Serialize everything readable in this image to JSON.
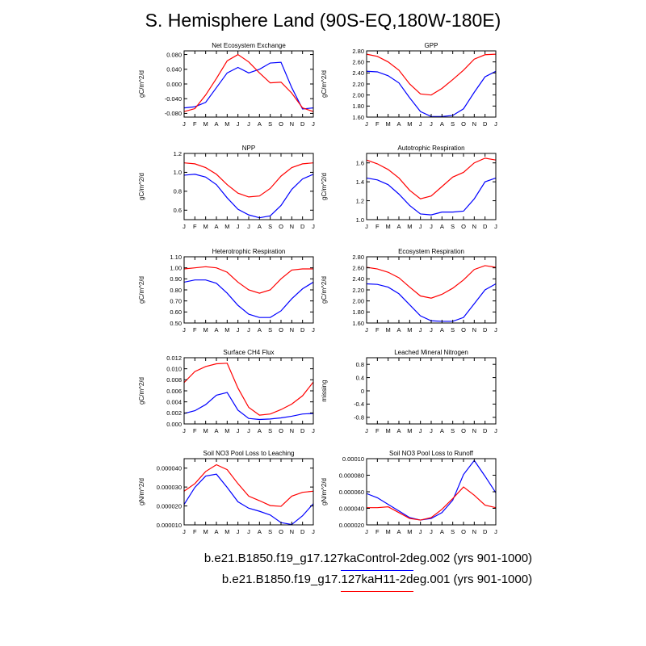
{
  "page": {
    "title": "S. Hemisphere Land (90S-EQ,180W-180E)",
    "months": [
      "J",
      "F",
      "M",
      "A",
      "M",
      "J",
      "J",
      "A",
      "S",
      "O",
      "N",
      "D",
      "J"
    ],
    "series_colors": {
      "control": "#0000ff",
      "h11": "#ff0000"
    }
  },
  "legend": [
    {
      "label": "b.e21.B1850.f19_g17.127kaControl-2deg.002 (yrs 901-1000)",
      "color": "#0000ff"
    },
    {
      "label": "b.e21.B1850.f19_g17.127kaH11-2deg.001 (yrs 901-1000)",
      "color": "#ff0000"
    }
  ],
  "chart_data": [
    {
      "type": "line",
      "title": "Net Ecosystem Exchange",
      "ylabel": "gC/m^2/d",
      "ylim": [
        -0.09,
        0.09
      ],
      "yticks": [
        -0.08,
        -0.04,
        0.0,
        0.04,
        0.08
      ],
      "ytick_labels": [
        "-0.080",
        "-0.040",
        "0.000",
        "0.040",
        "0.080"
      ],
      "series": [
        {
          "values": [
            -0.065,
            -0.062,
            -0.05,
            -0.01,
            0.03,
            0.045,
            0.03,
            0.04,
            0.057,
            0.059,
            -0.01,
            -0.068,
            -0.065
          ]
        },
        {
          "values": [
            -0.075,
            -0.067,
            -0.03,
            0.015,
            0.063,
            0.08,
            0.06,
            0.03,
            0.003,
            0.005,
            -0.025,
            -0.065,
            -0.075
          ]
        }
      ]
    },
    {
      "type": "line",
      "title": "GPP",
      "ylabel": "gC/m^2/d",
      "ylim": [
        1.6,
        2.8
      ],
      "yticks": [
        1.6,
        1.8,
        2.0,
        2.2,
        2.4,
        2.6,
        2.8
      ],
      "ytick_labels": [
        "1.60",
        "1.80",
        "2.00",
        "2.20",
        "2.40",
        "2.60",
        "2.80"
      ],
      "series": [
        {
          "values": [
            2.43,
            2.42,
            2.35,
            2.22,
            1.95,
            1.7,
            1.61,
            1.61,
            1.63,
            1.75,
            2.05,
            2.33,
            2.43
          ]
        },
        {
          "values": [
            2.74,
            2.7,
            2.6,
            2.45,
            2.2,
            2.02,
            2.0,
            2.12,
            2.28,
            2.45,
            2.65,
            2.73,
            2.74
          ]
        }
      ]
    },
    {
      "type": "line",
      "title": "NPP",
      "ylabel": "gC/m^2/d",
      "ylim": [
        0.5,
        1.2
      ],
      "yticks": [
        0.6,
        0.8,
        1.0,
        1.2
      ],
      "ytick_labels": [
        "0.6",
        "0.8",
        "1.0",
        "1.2"
      ],
      "series": [
        {
          "values": [
            0.97,
            0.98,
            0.95,
            0.87,
            0.73,
            0.61,
            0.55,
            0.52,
            0.54,
            0.65,
            0.82,
            0.93,
            0.98
          ]
        },
        {
          "values": [
            1.1,
            1.09,
            1.05,
            0.98,
            0.87,
            0.78,
            0.74,
            0.75,
            0.83,
            0.96,
            1.05,
            1.09,
            1.1
          ]
        }
      ]
    },
    {
      "type": "line",
      "title": "Autotrophic Respiration",
      "ylabel": "gC/m^2/d",
      "ylim": [
        1.0,
        1.7
      ],
      "yticks": [
        1.0,
        1.2,
        1.4,
        1.6
      ],
      "ytick_labels": [
        "1.0",
        "1.2",
        "1.4",
        "1.6"
      ],
      "series": [
        {
          "values": [
            1.44,
            1.42,
            1.37,
            1.27,
            1.15,
            1.06,
            1.05,
            1.08,
            1.08,
            1.09,
            1.22,
            1.4,
            1.44
          ]
        },
        {
          "values": [
            1.63,
            1.59,
            1.53,
            1.44,
            1.31,
            1.22,
            1.25,
            1.35,
            1.45,
            1.5,
            1.6,
            1.65,
            1.63
          ]
        }
      ]
    },
    {
      "type": "line",
      "title": "Heterotrophic Respiration",
      "ylabel": "gC/m^2/d",
      "ylim": [
        0.5,
        1.1
      ],
      "yticks": [
        0.5,
        0.6,
        0.7,
        0.8,
        0.9,
        1.0,
        1.1
      ],
      "ytick_labels": [
        "0.50",
        "0.60",
        "0.70",
        "0.80",
        "0.90",
        "1.00",
        "1.10"
      ],
      "series": [
        {
          "values": [
            0.87,
            0.89,
            0.89,
            0.86,
            0.77,
            0.66,
            0.58,
            0.55,
            0.55,
            0.61,
            0.72,
            0.81,
            0.87
          ]
        },
        {
          "values": [
            0.99,
            1.0,
            1.01,
            1.0,
            0.96,
            0.87,
            0.8,
            0.77,
            0.8,
            0.9,
            0.98,
            0.99,
            0.99
          ]
        }
      ]
    },
    {
      "type": "line",
      "title": "Ecosystem Respiration",
      "ylabel": "gC/m^2/d",
      "ylim": [
        1.6,
        2.8
      ],
      "yticks": [
        1.6,
        1.8,
        2.0,
        2.2,
        2.4,
        2.6,
        2.8
      ],
      "ytick_labels": [
        "1.60",
        "1.80",
        "2.00",
        "2.20",
        "2.40",
        "2.60",
        "2.80"
      ],
      "series": [
        {
          "values": [
            2.31,
            2.3,
            2.25,
            2.13,
            1.93,
            1.73,
            1.64,
            1.63,
            1.63,
            1.7,
            1.95,
            2.2,
            2.31
          ]
        },
        {
          "values": [
            2.61,
            2.58,
            2.52,
            2.42,
            2.25,
            2.09,
            2.05,
            2.12,
            2.23,
            2.38,
            2.57,
            2.64,
            2.61
          ]
        }
      ]
    },
    {
      "type": "line",
      "title": "Surface CH4 Flux",
      "ylabel": "gC/m^2/d",
      "ylim": [
        0.0,
        0.012
      ],
      "yticks": [
        0.0,
        0.002,
        0.004,
        0.006,
        0.008,
        0.01,
        0.012
      ],
      "ytick_labels": [
        "0.000",
        "0.002",
        "0.004",
        "0.006",
        "0.008",
        "0.010",
        "0.012"
      ],
      "series": [
        {
          "values": [
            0.0019,
            0.0024,
            0.0035,
            0.0052,
            0.0057,
            0.0025,
            0.001,
            0.0008,
            0.0009,
            0.0011,
            0.0014,
            0.0018,
            0.0019
          ]
        },
        {
          "values": [
            0.0075,
            0.0095,
            0.0104,
            0.0109,
            0.011,
            0.0065,
            0.003,
            0.0016,
            0.0018,
            0.0026,
            0.0036,
            0.0051,
            0.0076
          ]
        }
      ]
    },
    {
      "type": "line",
      "title": "Leached Mineral Nitrogen",
      "ylabel": "missing",
      "ylim": [
        -1.0,
        1.0
      ],
      "yticks": [
        -0.8,
        -0.4,
        0.0,
        0.4,
        0.8
      ],
      "ytick_labels": [
        "-0.8",
        "-0.4",
        "0",
        "0.4",
        "0.8"
      ],
      "series": []
    },
    {
      "type": "line",
      "title": "Soil NO3 Pool Loss to Leaching",
      "ylabel": "gN/m^2/d",
      "ylim": [
        1e-05,
        4.5e-05
      ],
      "yticks": [
        1e-05,
        2e-05,
        3e-05,
        4e-05
      ],
      "ytick_labels": [
        "0.000010",
        "0.000020",
        "0.000030",
        "0.000040"
      ],
      "series": [
        {
          "values": [
            2.08e-05,
            2.98e-05,
            3.58e-05,
            3.68e-05,
            2.98e-05,
            2.22e-05,
            1.88e-05,
            1.72e-05,
            1.52e-05,
            1.12e-05,
            1.02e-05,
            1.48e-05,
            2.12e-05
          ]
        },
        {
          "values": [
            2.78e-05,
            3.18e-05,
            3.82e-05,
            4.18e-05,
            3.92e-05,
            3.18e-05,
            2.52e-05,
            2.28e-05,
            2.02e-05,
            1.98e-05,
            2.52e-05,
            2.72e-05,
            2.78e-05
          ]
        }
      ]
    },
    {
      "type": "line",
      "title": "Soil NO3 Pool Loss to Runoff",
      "ylabel": "gN/m^2/d",
      "ylim": [
        2e-05,
        0.0001
      ],
      "yticks": [
        2e-05,
        4e-05,
        6e-05,
        8e-05,
        0.0001
      ],
      "ytick_labels": [
        "0.000020",
        "0.000040",
        "0.000060",
        "0.000080",
        "0.00010"
      ],
      "series": [
        {
          "values": [
            5.78e-05,
            5.28e-05,
            4.48e-05,
            3.68e-05,
            2.88e-05,
            2.58e-05,
            2.78e-05,
            3.48e-05,
            4.98e-05,
            8.08e-05,
            9.78e-05,
            7.88e-05,
            5.88e-05
          ]
        },
        {
          "values": [
            4.08e-05,
            4.08e-05,
            4.18e-05,
            3.48e-05,
            2.78e-05,
            2.58e-05,
            2.88e-05,
            3.88e-05,
            5.18e-05,
            6.58e-05,
            5.58e-05,
            4.38e-05,
            4.08e-05
          ]
        }
      ]
    }
  ]
}
